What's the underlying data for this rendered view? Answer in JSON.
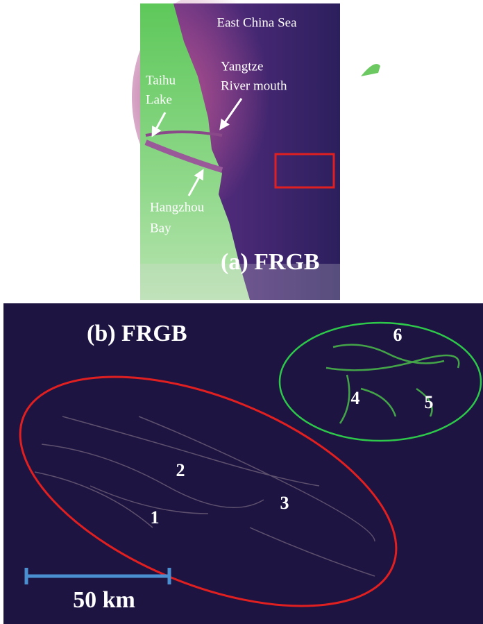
{
  "panel_a": {
    "title": "(a) FRGB",
    "sea_label": "East China Sea",
    "river_label": [
      "Yangtze",
      "River mouth"
    ],
    "lake_label": [
      "Taihu",
      "Lake"
    ],
    "bay_label": [
      "Hangzhou",
      "Bay"
    ]
  },
  "panel_b": {
    "title": "(b) FRGB",
    "regions": [
      "1",
      "2",
      "3",
      "4",
      "5",
      "6"
    ],
    "scale_bar": "50 km"
  }
}
